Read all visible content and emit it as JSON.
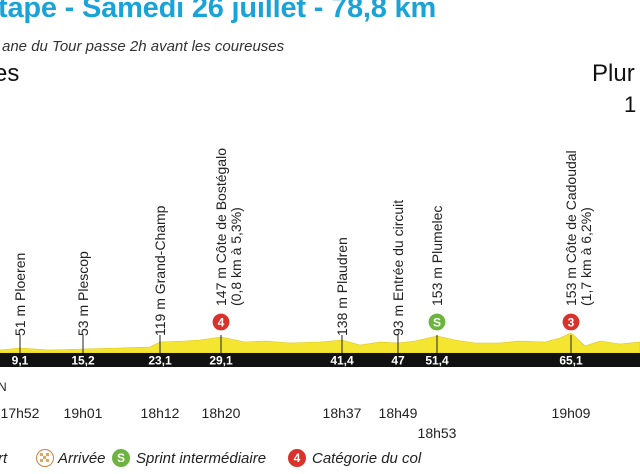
{
  "header": {
    "title": "tape - Samedi 26 juillet - 78,8 km",
    "subtitle": "ane du Tour passe 2h avant les coureuses",
    "start_city": "es",
    "end_city": "Plur",
    "end_altitude": "1"
  },
  "colors": {
    "title": "#19a3d8",
    "profile_fill": "#f4e531",
    "axis_bar": "#111111",
    "climb_badge": "#d9322b",
    "sprint_badge": "#6cb33f",
    "finish_badge": "#e8a25a"
  },
  "chart_data": {
    "type": "area",
    "axis_start_label": "N",
    "waypoints": [
      {
        "km": "9,1",
        "label": "51 m Ploeren",
        "time": "17h52",
        "badge": null
      },
      {
        "km": "15,2",
        "label": "53 m Plescop",
        "time": "19h01",
        "badge": null
      },
      {
        "km": "23,1",
        "label": "119 m Grand-Champ",
        "time": "18h12",
        "badge": null
      },
      {
        "km": "29,1",
        "label": "147 m Côte de Bostégalo",
        "label2": "(0,8 km à 5,3%)",
        "time": "18h20",
        "badge": "4"
      },
      {
        "km": "41,4",
        "label": "138 m Plaudren",
        "time": "18h37",
        "badge": null
      },
      {
        "km": "47",
        "label": "93 m Entrée du circuit",
        "time": "18h49",
        "badge": null
      },
      {
        "km": "51,4",
        "label": "153 m Plumelec",
        "time": "18h53",
        "badge": "S"
      },
      {
        "km": "65,1",
        "label": "153 m Côte de Cadoudal",
        "label2": "(1,7 km à 6,2%)",
        "time": "19h09",
        "badge": "3"
      }
    ]
  },
  "legend": {
    "start_partial": "rt",
    "finish": "Arrivée",
    "sprint": "Sprint intermédiaire",
    "sprint_badge": "S",
    "col": "Catégorie du col",
    "col_badge": "4"
  }
}
